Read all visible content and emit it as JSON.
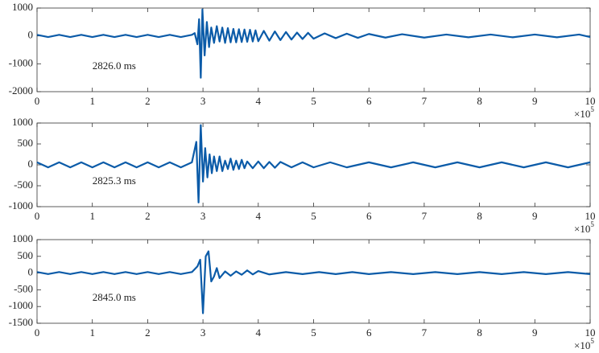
{
  "chart_data": [
    {
      "type": "line",
      "annotation": "2826.0 ms",
      "color": "#0b5ba8",
      "xlim": [
        0,
        10
      ],
      "xticks": [
        0,
        1,
        2,
        3,
        4,
        5,
        6,
        7,
        8,
        9,
        10
      ],
      "x_multiplier": "×10",
      "x_exponent": "5",
      "ylim": [
        -2000,
        1000
      ],
      "yticks": [
        -2000,
        -1000,
        0,
        1000
      ],
      "x": [
        0,
        0.2,
        0.4,
        0.6,
        0.8,
        1,
        1.2,
        1.4,
        1.6,
        1.8,
        2,
        2.2,
        2.4,
        2.6,
        2.8,
        2.85,
        2.9,
        2.93,
        2.96,
        2.99,
        3.03,
        3.07,
        3.11,
        3.15,
        3.2,
        3.25,
        3.3,
        3.35,
        3.4,
        3.45,
        3.5,
        3.55,
        3.6,
        3.65,
        3.7,
        3.75,
        3.8,
        3.85,
        3.9,
        3.95,
        4.0,
        4.1,
        4.2,
        4.3,
        4.4,
        4.5,
        4.6,
        4.7,
        4.8,
        4.9,
        5.0,
        5.2,
        5.4,
        5.6,
        5.8,
        6.0,
        6.3,
        6.6,
        7.0,
        7.4,
        7.8,
        8.2,
        8.6,
        9.0,
        9.4,
        9.8,
        10
      ],
      "values": [
        40,
        -40,
        40,
        -40,
        40,
        -40,
        40,
        -40,
        40,
        -40,
        40,
        -40,
        40,
        -40,
        40,
        100,
        -300,
        600,
        -1500,
        950,
        -700,
        500,
        -400,
        300,
        -250,
        350,
        -200,
        300,
        -250,
        280,
        -230,
        250,
        -230,
        240,
        -220,
        230,
        -210,
        220,
        -200,
        200,
        -190,
        180,
        -170,
        160,
        -150,
        140,
        -130,
        120,
        -110,
        110,
        -100,
        90,
        -80,
        80,
        -70,
        70,
        -60,
        60,
        -60,
        50,
        -50,
        50,
        -50,
        50,
        -50,
        50,
        -40
      ]
    },
    {
      "type": "line",
      "annotation": "2825.3 ms",
      "color": "#0b5ba8",
      "xlim": [
        0,
        10
      ],
      "xticks": [
        0,
        1,
        2,
        3,
        4,
        5,
        6,
        7,
        8,
        9,
        10
      ],
      "x_multiplier": "×10",
      "x_exponent": "5",
      "ylim": [
        -1000,
        1000
      ],
      "yticks": [
        -1000,
        -500,
        0,
        500,
        1000
      ],
      "x": [
        0,
        0.2,
        0.4,
        0.6,
        0.8,
        1,
        1.2,
        1.4,
        1.6,
        1.8,
        2,
        2.2,
        2.4,
        2.6,
        2.8,
        2.88,
        2.92,
        2.96,
        3.0,
        3.04,
        3.08,
        3.12,
        3.16,
        3.2,
        3.25,
        3.3,
        3.35,
        3.4,
        3.45,
        3.5,
        3.55,
        3.6,
        3.65,
        3.7,
        3.75,
        3.8,
        3.9,
        4.0,
        4.1,
        4.2,
        4.3,
        4.4,
        4.6,
        4.8,
        5.0,
        5.3,
        5.6,
        6.0,
        6.4,
        6.8,
        7.2,
        7.6,
        8.0,
        8.4,
        8.8,
        9.2,
        9.6,
        10
      ],
      "values": [
        60,
        -60,
        60,
        -60,
        60,
        -60,
        60,
        -60,
        60,
        -60,
        60,
        -60,
        60,
        -60,
        60,
        550,
        -900,
        950,
        -400,
        400,
        -300,
        250,
        -200,
        200,
        -150,
        200,
        -150,
        100,
        -100,
        150,
        -120,
        100,
        -100,
        120,
        -80,
        80,
        -80,
        80,
        -80,
        70,
        -70,
        70,
        -60,
        60,
        -60,
        60,
        -60,
        60,
        -60,
        60,
        -60,
        60,
        -60,
        60,
        -60,
        60,
        -60,
        60
      ]
    },
    {
      "type": "line",
      "annotation": "2845.0 ms",
      "color": "#0b5ba8",
      "xlim": [
        0,
        10
      ],
      "xticks": [
        0,
        1,
        2,
        3,
        4,
        5,
        6,
        7,
        8,
        9,
        10
      ],
      "x_multiplier": "×10",
      "x_exponent": "5",
      "ylim": [
        -1500,
        1000
      ],
      "yticks": [
        -1500,
        -1000,
        -500,
        0,
        500,
        1000
      ],
      "x": [
        0,
        0.2,
        0.4,
        0.6,
        0.8,
        1,
        1.2,
        1.4,
        1.6,
        1.8,
        2,
        2.2,
        2.4,
        2.6,
        2.8,
        2.9,
        2.95,
        3.0,
        3.05,
        3.1,
        3.15,
        3.2,
        3.25,
        3.3,
        3.35,
        3.4,
        3.5,
        3.6,
        3.7,
        3.8,
        3.9,
        4.0,
        4.2,
        4.5,
        4.8,
        5.1,
        5.4,
        5.7,
        6.0,
        6.4,
        6.8,
        7.2,
        7.6,
        8.0,
        8.4,
        8.8,
        9.2,
        9.6,
        10
      ],
      "values": [
        30,
        -30,
        30,
        -30,
        30,
        -30,
        30,
        -30,
        30,
        -30,
        30,
        -30,
        30,
        -30,
        30,
        200,
        400,
        -1200,
        500,
        650,
        -250,
        -100,
        150,
        -150,
        -50,
        50,
        -80,
        50,
        -50,
        80,
        -40,
        60,
        -40,
        30,
        -30,
        30,
        -30,
        30,
        -30,
        30,
        -30,
        30,
        -30,
        30,
        -30,
        30,
        -30,
        30,
        -30
      ]
    }
  ]
}
